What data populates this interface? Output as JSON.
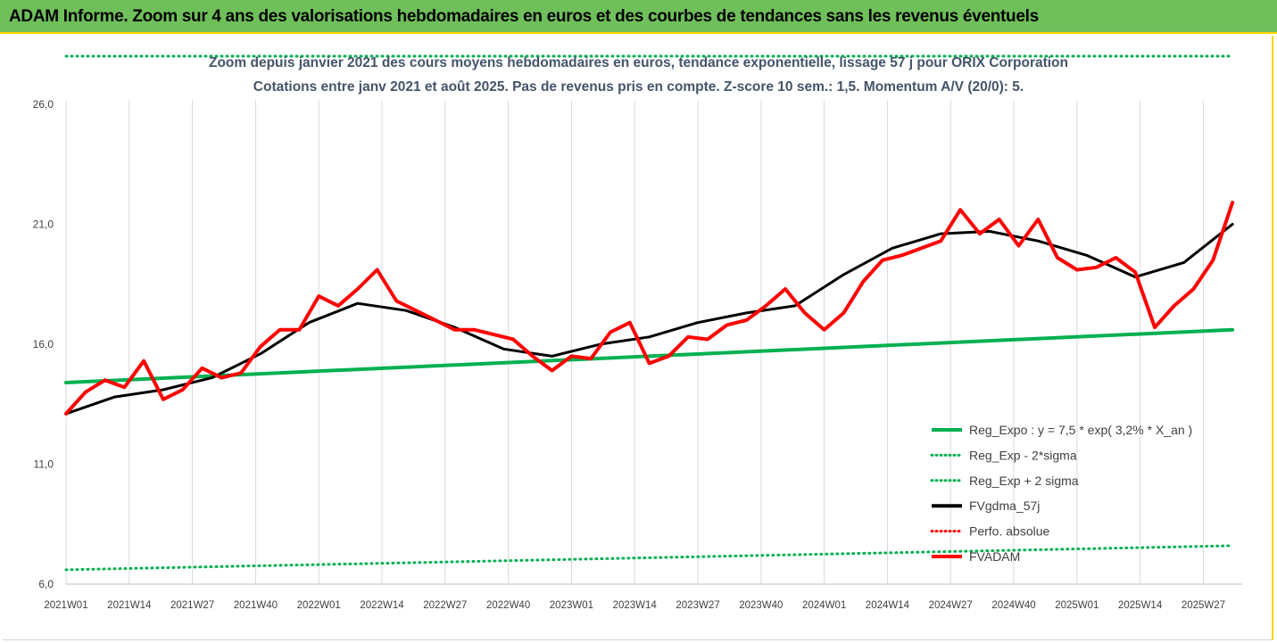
{
  "banner": {
    "title": "ADAM Informe. Zoom sur 4 ans des valorisations hebdomadaires en euros et des courbes de tendances sans les revenus éventuels"
  },
  "chart_data": {
    "type": "line",
    "title": "Zoom depuis janvier 2021 des cours moyens hebdomadaires en euros, tendance exponentielle, lissage 57 j pour ORIX Corporation",
    "subtitle": "Cotations entre janv 2021 et août 2025.  Pas de revenus pris en compte. Z-score 10 sem.: 1,5. Momentum A/V (20/0): 5.",
    "xlabel": "",
    "ylabel": "",
    "ylim": [
      6,
      28
    ],
    "y_ticks": [
      "6,0",
      "11,0",
      "16,0",
      "21,0",
      "26,0"
    ],
    "y_tick_values": [
      6,
      11,
      16,
      21,
      26
    ],
    "x_tick_labels": [
      "2021W01",
      "2021W14",
      "2021W27",
      "2021W40",
      "2022W01",
      "2022W14",
      "2022W27",
      "2022W40",
      "2023W01",
      "2023W14",
      "2023W27",
      "2023W40",
      "2024W01",
      "2024W14",
      "2024W27",
      "2024W40",
      "2025W01",
      "2025W14",
      "2025W27"
    ],
    "week_count": 243,
    "grid": "vertical",
    "legend_position": "right",
    "series": [
      {
        "name": "Reg_Expo : y = 7,5 * exp( 3,2% *  X_an )",
        "color": "#00b050",
        "style": "solid",
        "x": [
          0,
          240
        ],
        "y": [
          14.4,
          16.6
        ]
      },
      {
        "name": "Reg_Exp - 2*sigma",
        "color": "#00b050",
        "style": "dotted",
        "x": [
          0,
          240
        ],
        "y": [
          6.6,
          7.6
        ]
      },
      {
        "name": "Reg_Exp + 2 sigma",
        "color": "#00b050",
        "style": "dotted",
        "x": [
          0,
          240
        ],
        "y": [
          28.0,
          28.0
        ]
      },
      {
        "name": "FVgdma_57j",
        "color": "#000000",
        "style": "solid",
        "x": [
          0,
          10,
          20,
          30,
          40,
          50,
          60,
          70,
          80,
          90,
          100,
          110,
          120,
          130,
          140,
          150,
          160,
          170,
          180,
          190,
          200,
          210,
          220,
          230,
          240
        ],
        "y": [
          13.1,
          13.8,
          14.1,
          14.6,
          15.6,
          16.9,
          17.7,
          17.4,
          16.7,
          15.8,
          15.5,
          16.0,
          16.3,
          16.9,
          17.3,
          17.6,
          18.9,
          20.0,
          20.6,
          20.7,
          20.3,
          19.7,
          18.8,
          19.4,
          21.0
        ]
      },
      {
        "name": "Perfo. absolue",
        "color": "#ff0000",
        "style": "dotted",
        "x": [],
        "y": []
      },
      {
        "name": "FVADAM",
        "color": "#ff0000",
        "style": "solid",
        "x": [
          0,
          4,
          8,
          12,
          16,
          20,
          24,
          28,
          32,
          36,
          40,
          44,
          48,
          52,
          56,
          60,
          64,
          68,
          72,
          76,
          80,
          84,
          88,
          92,
          96,
          100,
          104,
          108,
          112,
          116,
          120,
          124,
          128,
          132,
          136,
          140,
          144,
          148,
          152,
          156,
          160,
          164,
          168,
          172,
          176,
          180,
          184,
          188,
          192,
          196,
          200,
          204,
          208,
          212,
          216,
          220,
          224,
          228,
          232,
          236,
          240
        ],
        "y": [
          13.1,
          14.0,
          14.5,
          14.2,
          15.3,
          13.7,
          14.1,
          15.0,
          14.6,
          14.8,
          15.9,
          16.6,
          16.6,
          18.0,
          17.6,
          18.3,
          19.1,
          17.8,
          17.4,
          17.0,
          16.6,
          16.6,
          16.4,
          16.2,
          15.5,
          14.9,
          15.5,
          15.4,
          16.5,
          16.9,
          15.2,
          15.5,
          16.3,
          16.2,
          16.8,
          17.0,
          17.6,
          18.3,
          17.3,
          16.6,
          17.3,
          18.6,
          19.5,
          19.7,
          20.0,
          20.3,
          21.6,
          20.6,
          21.2,
          20.1,
          21.2,
          19.6,
          19.1,
          19.2,
          19.6,
          19.0,
          16.7,
          17.6,
          18.3,
          19.5,
          21.9
        ]
      }
    ]
  }
}
